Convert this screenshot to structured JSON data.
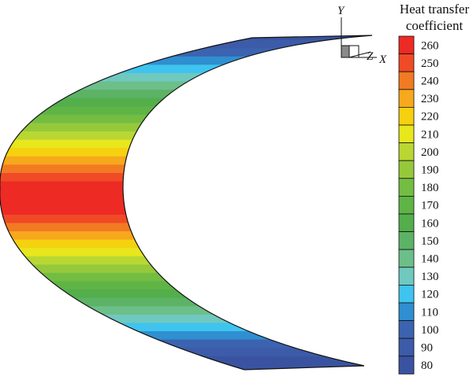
{
  "legend": {
    "title_lines": [
      "Heat transfer",
      "coefficient"
    ],
    "levels": [
      {
        "value": "260",
        "color": "#ee2a24"
      },
      {
        "value": "250",
        "color": "#f04a26"
      },
      {
        "value": "240",
        "color": "#f27a22"
      },
      {
        "value": "230",
        "color": "#f7a81c"
      },
      {
        "value": "220",
        "color": "#f5d10f"
      },
      {
        "value": "210",
        "color": "#e8e61c"
      },
      {
        "value": "200",
        "color": "#b9d733"
      },
      {
        "value": "190",
        "color": "#95c93b"
      },
      {
        "value": "180",
        "color": "#73bd42"
      },
      {
        "value": "170",
        "color": "#5fb446"
      },
      {
        "value": "160",
        "color": "#53ae4b"
      },
      {
        "value": "150",
        "color": "#5cb366"
      },
      {
        "value": "140",
        "color": "#6cbf89"
      },
      {
        "value": "130",
        "color": "#6fc9bf"
      },
      {
        "value": "120",
        "color": "#3ec4ee"
      },
      {
        "value": "110",
        "color": "#2f8fd0"
      },
      {
        "value": "100",
        "color": "#3b63b0"
      },
      {
        "value": "90",
        "color": "#3c5ba8"
      },
      {
        "value": "80",
        "color": "#3a53a0"
      }
    ]
  },
  "axes": {
    "y_label": "Y",
    "z_label": "Z",
    "x_label": "X"
  },
  "blade_bands": [
    "#3a53a0",
    "#3c5ba8",
    "#3b63b0",
    "#2f8fd0",
    "#3ec4ee",
    "#6fc9bf",
    "#6cbf89",
    "#5cb366",
    "#53ae4b",
    "#5fb446",
    "#73bd42",
    "#95c93b",
    "#b9d733",
    "#e8e61c",
    "#f5d10f",
    "#f7a81c",
    "#f27a22",
    "#f04a26",
    "#ee2a24",
    "#ee2a24",
    "#ee2a24",
    "#ee2a24",
    "#f04a26",
    "#f27a22",
    "#f7a81c",
    "#f5d10f",
    "#e8e61c",
    "#b9d733",
    "#95c93b",
    "#73bd42",
    "#5fb446",
    "#53ae4b",
    "#5cb366",
    "#6cbf89",
    "#6fc9bf",
    "#3ec4ee",
    "#2f8fd0",
    "#3b63b0",
    "#3c5ba8",
    "#3a53a0",
    "#3a53a0"
  ]
}
